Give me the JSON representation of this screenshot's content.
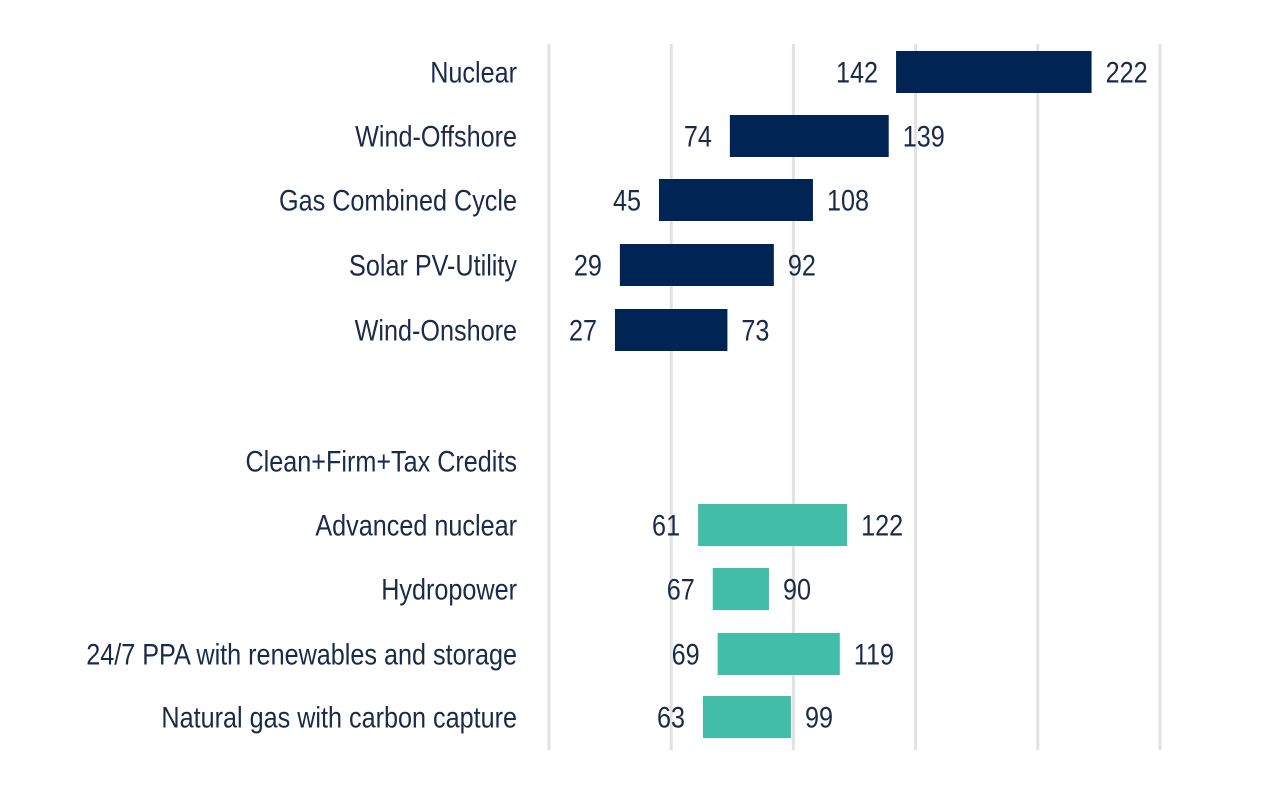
{
  "chart_data": {
    "type": "bar",
    "subtype": "floating-range",
    "title": "",
    "xlabel": "",
    "ylabel": "",
    "xlim": [
      0,
      250
    ],
    "grid": true,
    "gridline_values": [
      0,
      50,
      100,
      150,
      200,
      250
    ],
    "groups": [
      {
        "name": "conventional",
        "header": "",
        "color": "#002554",
        "rows": [
          {
            "label": "Nuclear",
            "low": 142,
            "high": 222
          },
          {
            "label": "Wind-Offshore",
            "low": 74,
            "high": 139
          },
          {
            "label": "Gas Combined Cycle",
            "low": 45,
            "high": 108
          },
          {
            "label": "Solar PV-Utility",
            "low": 29,
            "high": 92
          },
          {
            "label": "Wind-Onshore",
            "low": 27,
            "high": 73
          }
        ]
      },
      {
        "name": "clean-firm",
        "header": "Clean+Firm+Tax Credits",
        "color": "#41bda8",
        "rows": [
          {
            "label": "Advanced nuclear",
            "low": 61,
            "high": 122
          },
          {
            "label": "Hydropower",
            "low": 67,
            "high": 90
          },
          {
            "label": "24/7 PPA with renewables and storage",
            "low": 69,
            "high": 119
          },
          {
            "label": "Natural gas with carbon capture",
            "low": 63,
            "high": 99
          }
        ]
      }
    ]
  }
}
